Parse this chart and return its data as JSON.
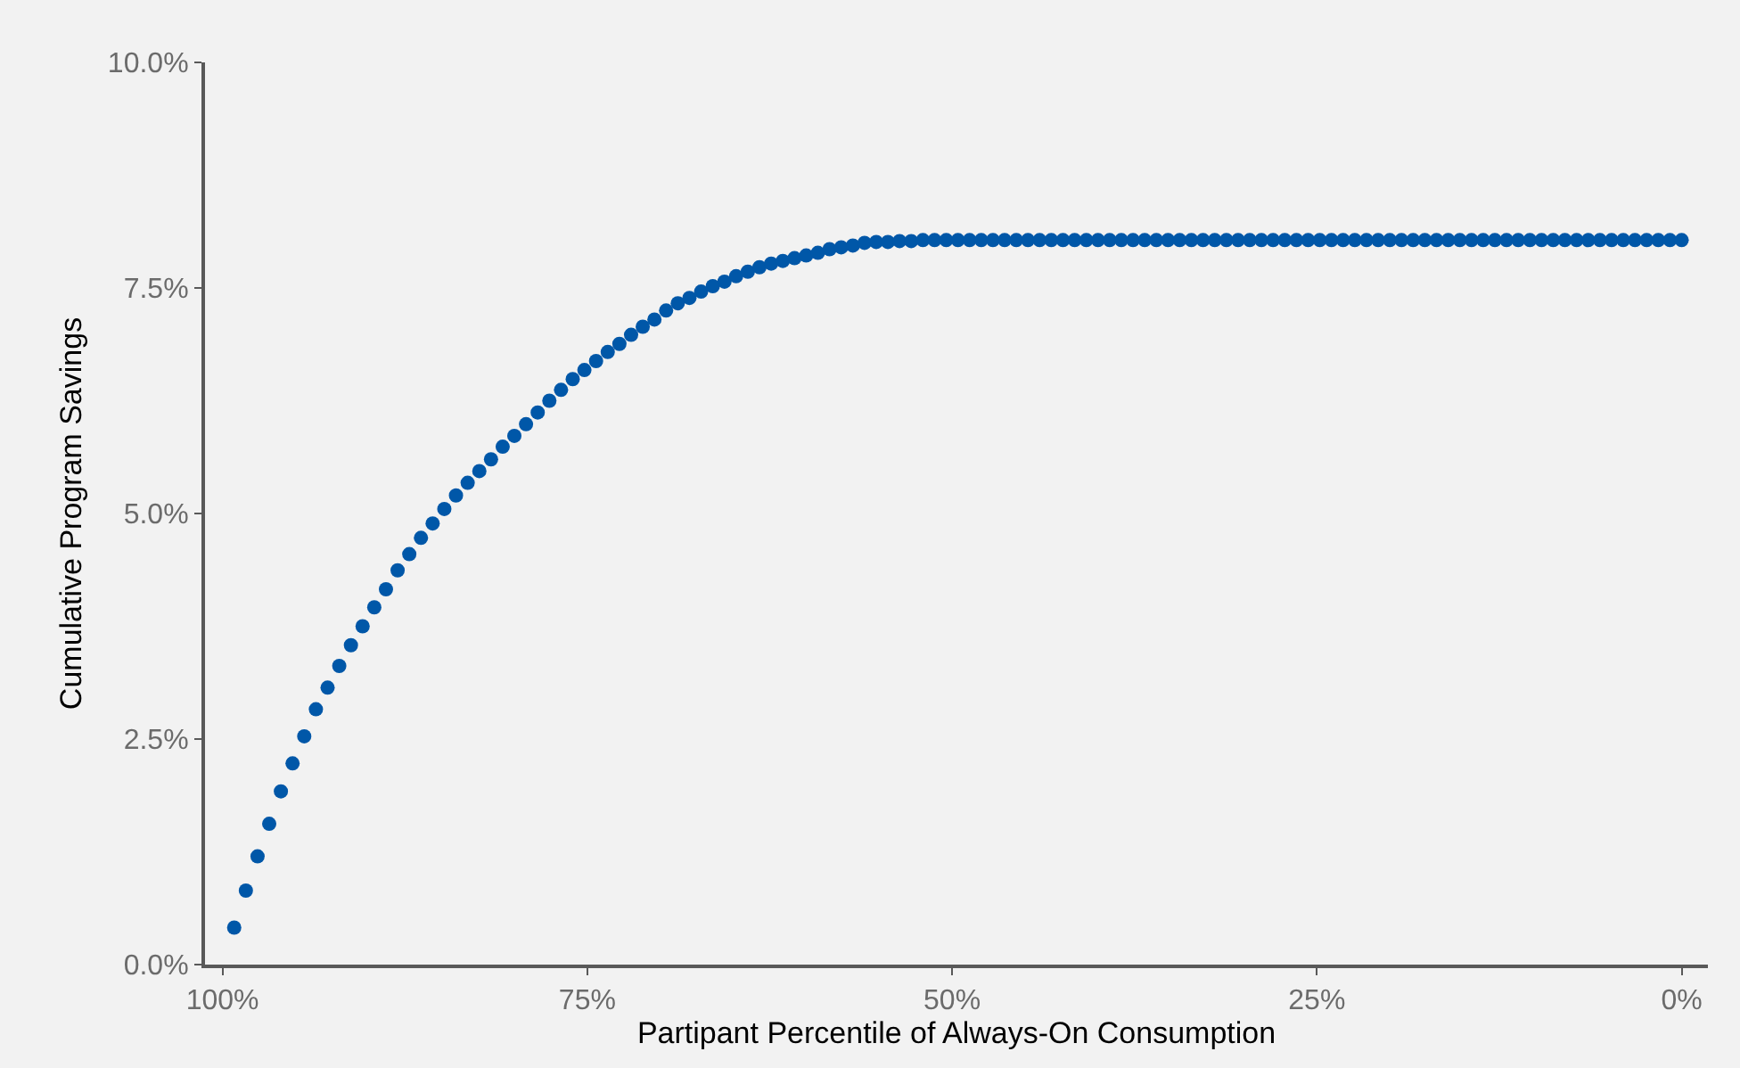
{
  "chart_data": {
    "type": "scatter",
    "xlabel": "Partipant Percentile of Always-On Consumption",
    "ylabel": "Cumulative Program Savings",
    "marker": "circle",
    "grid": false,
    "xlim": [
      101.2,
      -1.8
    ],
    "xticks": [
      {
        "value": 100,
        "label": "100%"
      },
      {
        "value": 75,
        "label": "75%"
      },
      {
        "value": 50,
        "label": "50%"
      },
      {
        "value": 25,
        "label": "25%"
      },
      {
        "value": 0,
        "label": "0%"
      }
    ],
    "ylim": [
      0,
      10
    ],
    "yticks": [
      {
        "value": 0,
        "label": "0.0%"
      },
      {
        "value": 2.5,
        "label": "2.5%"
      },
      {
        "value": 5,
        "label": "5.0%"
      },
      {
        "value": 7.5,
        "label": "7.5%"
      },
      {
        "value": 10,
        "label": "10.0%"
      }
    ],
    "x": [
      99.2,
      98.4,
      97.6,
      96.8,
      96,
      95.2,
      94.4,
      93.6,
      92.8,
      92,
      91.2,
      90.4,
      89.6,
      88.8,
      88,
      87.2,
      86.4,
      85.6,
      84.8,
      84,
      83.2,
      82.4,
      81.6,
      80.8,
      80,
      79.2,
      78.4,
      77.6,
      76.8,
      76,
      75.2,
      74.4,
      73.6,
      72.8,
      72,
      71.2,
      70.4,
      69.6,
      68.8,
      68,
      67.2,
      66.4,
      65.6,
      64.8,
      64,
      63.2,
      62.4,
      61.6,
      60.8,
      60,
      59.2,
      58.4,
      57.6,
      56.8,
      56,
      55.2,
      54.4,
      53.6,
      52.8,
      52,
      51.2,
      50.4,
      49.6,
      48.8,
      48,
      47.2,
      46.4,
      45.6,
      44.8,
      44,
      43.2,
      42.4,
      41.6,
      40.8,
      40,
      39.2,
      38.4,
      37.6,
      36.8,
      36,
      35.2,
      34.4,
      33.6,
      32.8,
      32,
      31.2,
      30.4,
      29.6,
      28.8,
      28,
      27.2,
      26.4,
      25.6,
      24.8,
      24,
      23.2,
      22.4,
      21.6,
      20.8,
      20,
      19.2,
      18.4,
      17.6,
      16.8,
      16,
      15.2,
      14.4,
      13.6,
      12.8,
      12,
      11.2,
      10.4,
      9.6,
      8.8,
      8,
      7.2,
      6.4,
      5.6,
      4.8,
      4,
      3.2,
      2.4,
      1.6,
      0.8,
      0
    ],
    "series": [
      {
        "color": "#0057a8",
        "values": [
          0.41,
          0.82,
          1.2,
          1.56,
          1.92,
          2.23,
          2.53,
          2.83,
          3.07,
          3.31,
          3.54,
          3.75,
          3.96,
          4.16,
          4.37,
          4.55,
          4.73,
          4.89,
          5.05,
          5.2,
          5.34,
          5.47,
          5.6,
          5.74,
          5.86,
          5.99,
          6.12,
          6.25,
          6.37,
          6.49,
          6.59,
          6.69,
          6.79,
          6.88,
          6.98,
          7.07,
          7.15,
          7.25,
          7.33,
          7.39,
          7.46,
          7.52,
          7.57,
          7.63,
          7.68,
          7.73,
          7.77,
          7.8,
          7.83,
          7.86,
          7.89,
          7.93,
          7.95,
          7.97,
          8.0,
          8.01,
          8.01,
          8.02,
          8.02,
          8.03,
          8.03,
          8.03,
          8.03,
          8.03,
          8.03,
          8.03,
          8.03,
          8.03,
          8.03,
          8.03,
          8.03,
          8.03,
          8.03,
          8.03,
          8.03,
          8.03,
          8.03,
          8.03,
          8.03,
          8.03,
          8.03,
          8.03,
          8.03,
          8.03,
          8.03,
          8.03,
          8.03,
          8.03,
          8.03,
          8.03,
          8.03,
          8.03,
          8.03,
          8.03,
          8.03,
          8.03,
          8.03,
          8.03,
          8.03,
          8.03,
          8.03,
          8.03,
          8.03,
          8.03,
          8.03,
          8.03,
          8.03,
          8.03,
          8.03,
          8.03,
          8.03,
          8.03,
          8.03,
          8.03,
          8.03,
          8.03,
          8.03,
          8.03,
          8.03,
          8.03,
          8.03,
          8.03,
          8.03,
          8.03,
          8.03
        ]
      }
    ]
  }
}
